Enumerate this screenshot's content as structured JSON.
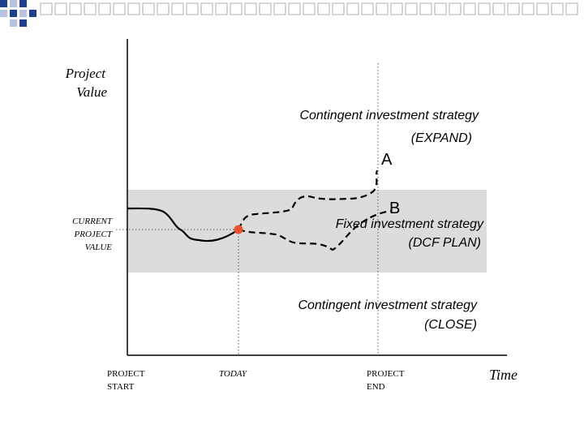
{
  "slide": {
    "y_axis_label_line1": "Project",
    "y_axis_label_line2": "Value",
    "x_axis_label": "Time",
    "current_value_line1": "CURRENT",
    "current_value_line2": "PROJECT",
    "current_value_line3": "VALUE",
    "strategies": {
      "expand_line1": "Contingent investment strategy",
      "expand_line2": "(EXPAND)",
      "fixed_line1": "Fixed investment strategy",
      "fixed_line2": "(DCF PLAN)",
      "close_line1": "Contingent investment strategy",
      "close_line2": "(CLOSE)"
    },
    "path_labels": {
      "a": "A",
      "b": "B"
    },
    "time_markers": {
      "start_line1": "PROJECT",
      "start_line2": "START",
      "today": "TODAY",
      "end_line1": "PROJECT",
      "end_line2": "END"
    }
  },
  "colors": {
    "band": "#dcdcdc",
    "axis": "#000000",
    "today_marker": "#e8542a",
    "logo_blue": "#1f3f8f",
    "logo_light": "#b7c3e3"
  }
}
